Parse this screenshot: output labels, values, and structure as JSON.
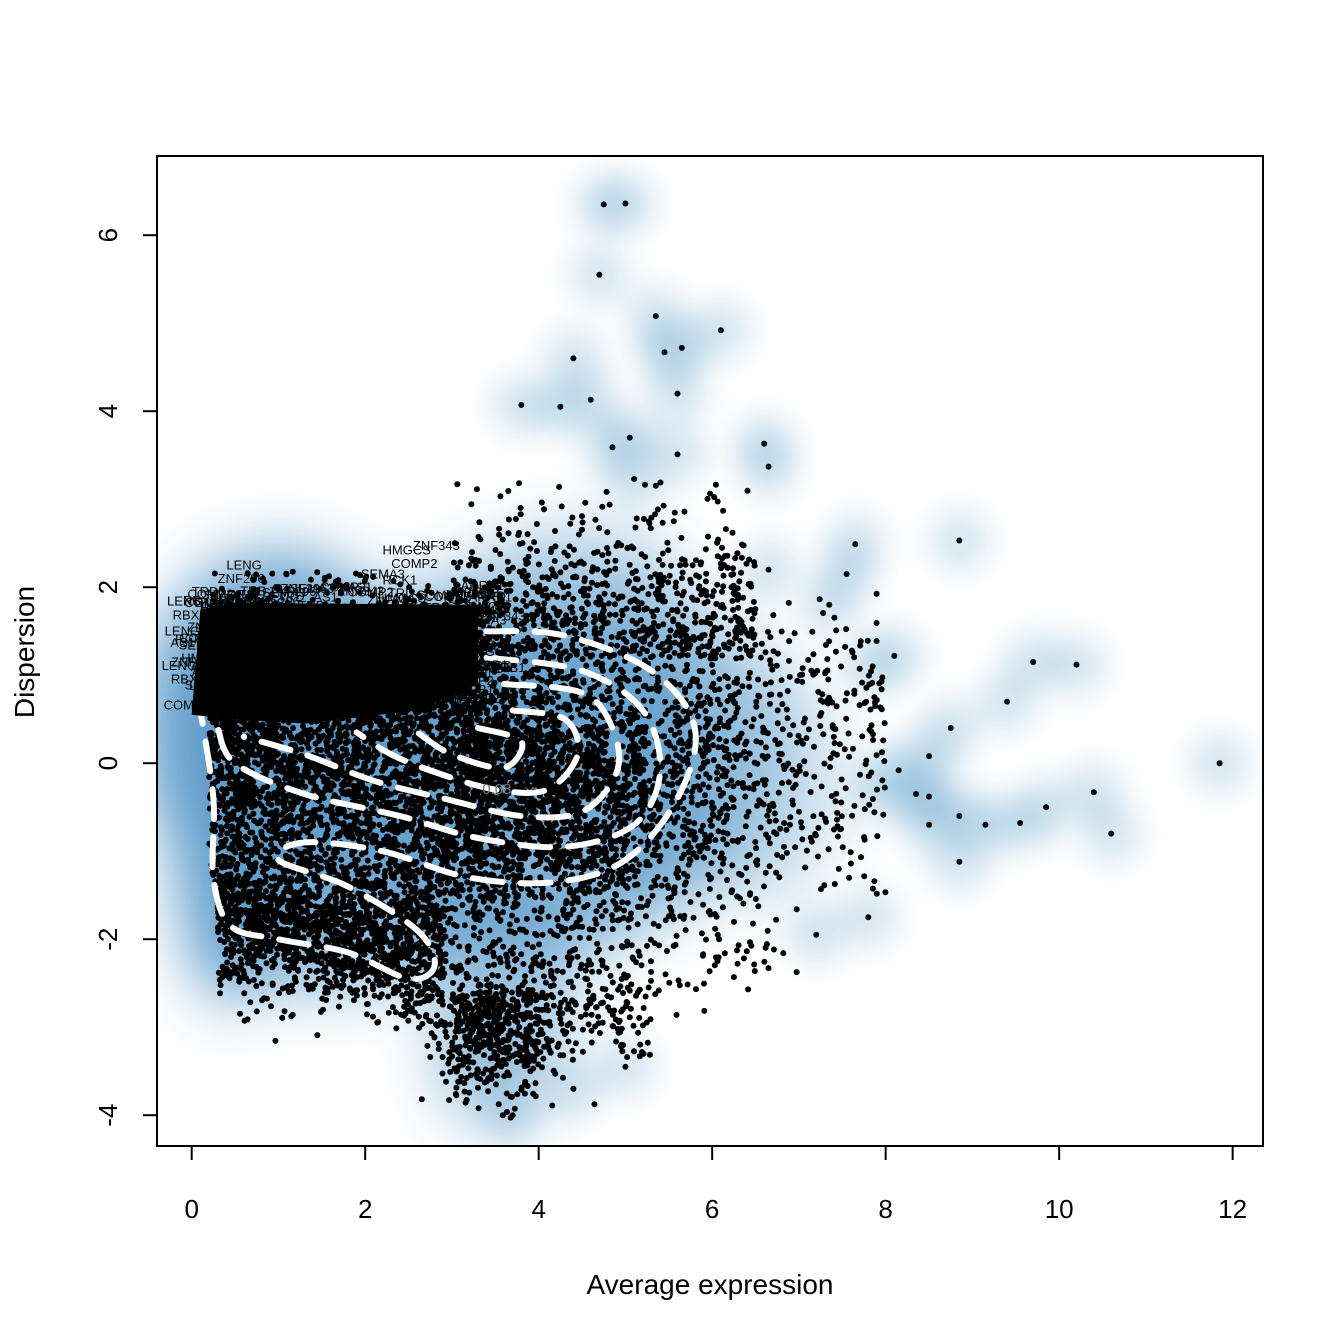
{
  "chart_data": {
    "type": "scatter",
    "xlabel": "Average expression",
    "ylabel": "Dispersion",
    "xlim": [
      -0.4,
      12.35
    ],
    "ylim": [
      -4.35,
      6.9
    ],
    "x_ticks": [
      0,
      2,
      4,
      6,
      8,
      10,
      12
    ],
    "y_ticks": [
      -4,
      -2,
      0,
      2,
      4,
      6
    ],
    "x_tick_labels": [
      "0",
      "2",
      "4",
      "6",
      "8",
      "10",
      "12"
    ],
    "y_tick_labels": [
      "-4",
      "-2",
      "0",
      "2",
      "4",
      "6"
    ],
    "density_color": "#4a90c4",
    "point_color": "#000000",
    "contour_color": "#ffffff",
    "contour_label": "0.08",
    "highlighted_gene_labels": [
      "LENG",
      "ZNF296",
      "HMGCS",
      "ZNF343",
      "COMP2",
      "SEMA3",
      "RCK1",
      "AS1",
      "ARRB1",
      "TRD",
      "RBX8"
    ],
    "outlier_points": [
      {
        "x": 4.75,
        "y": 6.35
      },
      {
        "x": 5.0,
        "y": 6.36
      },
      {
        "x": 4.7,
        "y": 5.55
      },
      {
        "x": 5.35,
        "y": 5.08
      },
      {
        "x": 6.1,
        "y": 4.92
      },
      {
        "x": 5.45,
        "y": 4.67
      },
      {
        "x": 5.65,
        "y": 4.72
      },
      {
        "x": 4.4,
        "y": 4.6
      },
      {
        "x": 5.6,
        "y": 4.2
      },
      {
        "x": 4.6,
        "y": 4.13
      },
      {
        "x": 3.8,
        "y": 4.07
      },
      {
        "x": 4.25,
        "y": 4.05
      },
      {
        "x": 6.6,
        "y": 3.63
      },
      {
        "x": 4.85,
        "y": 3.59
      },
      {
        "x": 5.05,
        "y": 3.7
      },
      {
        "x": 5.6,
        "y": 3.51
      },
      {
        "x": 6.65,
        "y": 3.37
      },
      {
        "x": 5.1,
        "y": 3.23
      },
      {
        "x": 8.85,
        "y": 2.53
      },
      {
        "x": 7.65,
        "y": 2.49
      },
      {
        "x": 7.55,
        "y": 2.15
      },
      {
        "x": 6.65,
        "y": 2.2
      },
      {
        "x": 7.35,
        "y": 1.8
      },
      {
        "x": 8.1,
        "y": 1.22
      },
      {
        "x": 7.85,
        "y": 1.1
      },
      {
        "x": 9.7,
        "y": 1.15
      },
      {
        "x": 10.2,
        "y": 1.12
      },
      {
        "x": 9.4,
        "y": 0.7
      },
      {
        "x": 8.75,
        "y": 0.4
      },
      {
        "x": 11.85,
        "y": 0.0
      },
      {
        "x": 8.5,
        "y": 0.08
      },
      {
        "x": 8.15,
        "y": -0.08
      },
      {
        "x": 7.9,
        "y": -0.3
      },
      {
        "x": 8.35,
        "y": -0.35
      },
      {
        "x": 8.5,
        "y": -0.38
      },
      {
        "x": 9.85,
        "y": -0.5
      },
      {
        "x": 10.4,
        "y": -0.33
      },
      {
        "x": 8.85,
        "y": -0.6
      },
      {
        "x": 9.15,
        "y": -0.7
      },
      {
        "x": 9.55,
        "y": -0.68
      },
      {
        "x": 8.5,
        "y": -0.7
      },
      {
        "x": 10.6,
        "y": -0.8
      },
      {
        "x": 8.85,
        "y": -1.12
      },
      {
        "x": 7.8,
        "y": -1.75
      },
      {
        "x": 7.2,
        "y": -1.95
      },
      {
        "x": 5.0,
        "y": -3.45
      },
      {
        "x": 3.7,
        "y": -4.0
      },
      {
        "x": 4.4,
        "y": -3.7
      }
    ]
  }
}
